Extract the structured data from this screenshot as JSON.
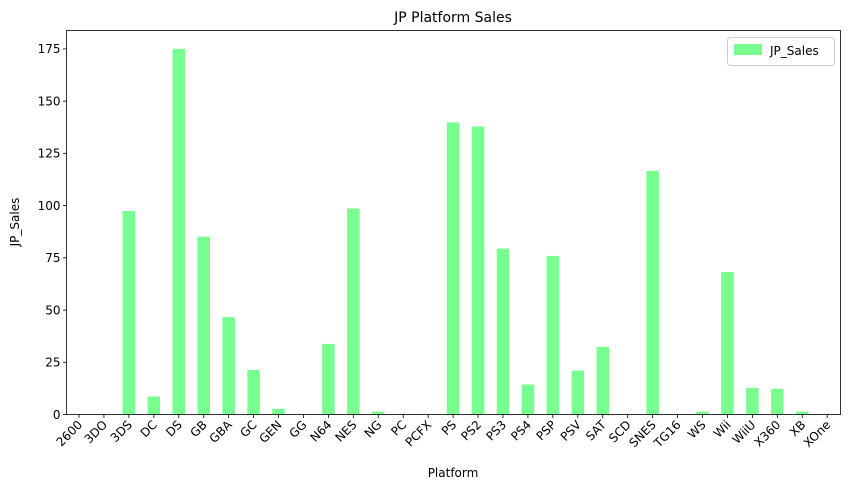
{
  "chart_data": {
    "type": "bar",
    "title": "JP Platform Sales",
    "xlabel": "Platform",
    "ylabel": "JP_Sales",
    "categories": [
      "2600",
      "3DO",
      "3DS",
      "DC",
      "DS",
      "GB",
      "GBA",
      "GC",
      "GEN",
      "GG",
      "N64",
      "NES",
      "NG",
      "PC",
      "PCFX",
      "PS",
      "PS2",
      "PS3",
      "PS4",
      "PSP",
      "PSV",
      "SAT",
      "SCD",
      "SNES",
      "TG16",
      "WS",
      "Wii",
      "WiiU",
      "X360",
      "XB",
      "XOne"
    ],
    "series": [
      {
        "name": "JP_Sales",
        "color": "#77ff8f",
        "values": [
          0.0,
          0.1,
          97.4,
          8.6,
          175.0,
          85.1,
          46.6,
          21.3,
          2.7,
          0.0,
          33.8,
          98.6,
          1.4,
          0.2,
          0.0,
          139.8,
          137.8,
          79.4,
          14.3,
          75.9,
          21.0,
          32.3,
          0.0,
          116.6,
          0.2,
          1.4,
          68.2,
          12.8,
          12.3,
          1.4,
          0.3
        ]
      }
    ],
    "ylim": [
      0,
      183.8
    ],
    "yticks": [
      0,
      25,
      50,
      75,
      100,
      125,
      150,
      175
    ],
    "legend_position": "top-right",
    "grid": false
  }
}
